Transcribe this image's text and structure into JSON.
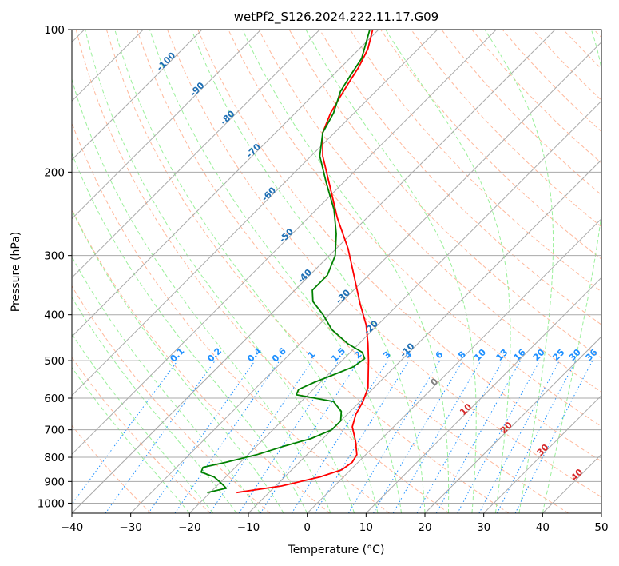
{
  "chart_data": {
    "type": "line",
    "title": "wetPf2_S126.2024.222.11.17.G09",
    "xlabel": "Temperature (°C)",
    "ylabel": "Pressure (hPa)",
    "xlim": [
      -40,
      50
    ],
    "ylim": [
      1050,
      100
    ],
    "y_scale": "log",
    "skew": true,
    "grid": true,
    "x_ticks": [
      -40,
      -30,
      -20,
      -10,
      0,
      10,
      20,
      30,
      40,
      50
    ],
    "y_ticks": [
      100,
      200,
      300,
      400,
      500,
      600,
      700,
      800,
      900,
      1000
    ],
    "colors": {
      "temperature": "#ff0000",
      "dewpoint": "#008000",
      "isotherm": "#aaaaaa",
      "dry_adiabat": "#ffa07a",
      "moist_adiabat": "#90ee90",
      "mixing_ratio": "#1e90ff",
      "isotherm_label": "#1f6fb4",
      "dry_label": "#d62728",
      "mixing_label": "#1e90ff"
    },
    "series": [
      {
        "key": "temperature",
        "points": [
          {
            "p": 950,
            "t": -15.5
          },
          {
            "p": 920,
            "t": -9.0
          },
          {
            "p": 880,
            "t": -4.0
          },
          {
            "p": 850,
            "t": -1.5
          },
          {
            "p": 820,
            "t": -1.0
          },
          {
            "p": 790,
            "t": -1.5
          },
          {
            "p": 740,
            "t": -4.0
          },
          {
            "p": 690,
            "t": -7.0
          },
          {
            "p": 650,
            "t": -8.5
          },
          {
            "p": 610,
            "t": -9.5
          },
          {
            "p": 570,
            "t": -11.0
          },
          {
            "p": 530,
            "t": -13.5
          },
          {
            "p": 500,
            "t": -15.5
          },
          {
            "p": 460,
            "t": -18.5
          },
          {
            "p": 420,
            "t": -22.0
          },
          {
            "p": 380,
            "t": -26.5
          },
          {
            "p": 330,
            "t": -32.5
          },
          {
            "p": 290,
            "t": -38.0
          },
          {
            "p": 250,
            "t": -45.0
          },
          {
            "p": 215,
            "t": -51.5
          },
          {
            "p": 185,
            "t": -58.0
          },
          {
            "p": 165,
            "t": -62.0
          },
          {
            "p": 150,
            "t": -64.0
          },
          {
            "p": 140,
            "t": -65.0
          },
          {
            "p": 130,
            "t": -66.0
          },
          {
            "p": 120,
            "t": -67.0
          },
          {
            "p": 110,
            "t": -68.5
          },
          {
            "p": 100,
            "t": -71.0
          }
        ]
      },
      {
        "key": "dewpoint",
        "points": [
          {
            "p": 950,
            "t": -20.5
          },
          {
            "p": 930,
            "t": -18.0
          },
          {
            "p": 910,
            "t": -19.5
          },
          {
            "p": 880,
            "t": -22.0
          },
          {
            "p": 860,
            "t": -25.0
          },
          {
            "p": 840,
            "t": -25.5
          },
          {
            "p": 820,
            "t": -22.5
          },
          {
            "p": 790,
            "t": -18.5
          },
          {
            "p": 760,
            "t": -15.5
          },
          {
            "p": 730,
            "t": -12.0
          },
          {
            "p": 700,
            "t": -10.0
          },
          {
            "p": 670,
            "t": -10.0
          },
          {
            "p": 640,
            "t": -11.5
          },
          {
            "p": 610,
            "t": -14.5
          },
          {
            "p": 590,
            "t": -22.0
          },
          {
            "p": 575,
            "t": -22.5
          },
          {
            "p": 555,
            "t": -21.0
          },
          {
            "p": 535,
            "t": -19.0
          },
          {
            "p": 515,
            "t": -17.0
          },
          {
            "p": 495,
            "t": -16.5
          },
          {
            "p": 480,
            "t": -18.0
          },
          {
            "p": 460,
            "t": -22.0
          },
          {
            "p": 430,
            "t": -27.0
          },
          {
            "p": 400,
            "t": -31.0
          },
          {
            "p": 375,
            "t": -35.0
          },
          {
            "p": 355,
            "t": -37.0
          },
          {
            "p": 330,
            "t": -37.0
          },
          {
            "p": 300,
            "t": -39.0
          },
          {
            "p": 270,
            "t": -42.5
          },
          {
            "p": 240,
            "t": -47.0
          },
          {
            "p": 210,
            "t": -53.0
          },
          {
            "p": 185,
            "t": -58.5
          },
          {
            "p": 165,
            "t": -62.0
          },
          {
            "p": 150,
            "t": -63.5
          },
          {
            "p": 135,
            "t": -66.0
          },
          {
            "p": 125,
            "t": -67.0
          },
          {
            "p": 115,
            "t": -68.0
          },
          {
            "p": 100,
            "t": -71.5
          }
        ]
      }
    ],
    "isotherm_labels": [
      {
        "text": "-100",
        "t": -100
      },
      {
        "text": "-90",
        "t": -90
      },
      {
        "text": "-80",
        "t": -80
      },
      {
        "text": "-70",
        "t": -70
      },
      {
        "text": "-60",
        "t": -60
      },
      {
        "text": "-50",
        "t": -50
      },
      {
        "text": "-40",
        "t": -40
      },
      {
        "text": "-30",
        "t": -30
      },
      {
        "text": "-20",
        "t": -20
      },
      {
        "text": "-10",
        "t": -10
      }
    ],
    "zero_label": "0",
    "dry_labels": [
      {
        "text": "10",
        "t": 10,
        "p": 640
      },
      {
        "text": "20",
        "t": 20,
        "p": 700
      },
      {
        "text": "30",
        "t": 30,
        "p": 780
      },
      {
        "text": "40",
        "t": 40,
        "p": 880
      }
    ],
    "mixing_ratios": [
      0.1,
      0.2,
      0.4,
      0.6,
      1,
      1.5,
      2,
      3,
      4,
      6,
      8,
      10,
      13,
      16,
      20,
      25,
      30,
      36
    ],
    "mixing_labels": [
      "0.1",
      "0.2",
      "0.4",
      "0.6",
      "1",
      "1.5",
      "2",
      "3",
      "4",
      "6",
      "8",
      "10",
      "13",
      "16",
      "20",
      "25",
      "30",
      "36"
    ]
  }
}
